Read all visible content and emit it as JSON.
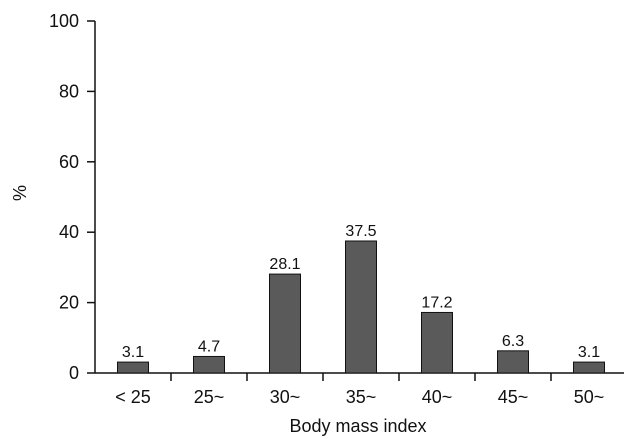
{
  "chart_data": {
    "type": "bar",
    "title": "",
    "xlabel": "Body mass index",
    "ylabel": "%",
    "categories": [
      "< 25",
      "25~",
      "30~",
      "35~",
      "40~",
      "45~",
      "50~"
    ],
    "values": [
      3.1,
      4.7,
      28.1,
      37.5,
      17.2,
      6.3,
      3.1
    ],
    "data_labels": [
      "3.1",
      "4.7",
      "28.1",
      "37.5",
      "17.2",
      "6.3",
      "3.1"
    ],
    "ylim": [
      0,
      100
    ],
    "yticks": [
      0,
      20,
      40,
      60,
      80,
      100
    ],
    "grid": false,
    "legend": "none",
    "bar_color": "#5a5a5a"
  }
}
